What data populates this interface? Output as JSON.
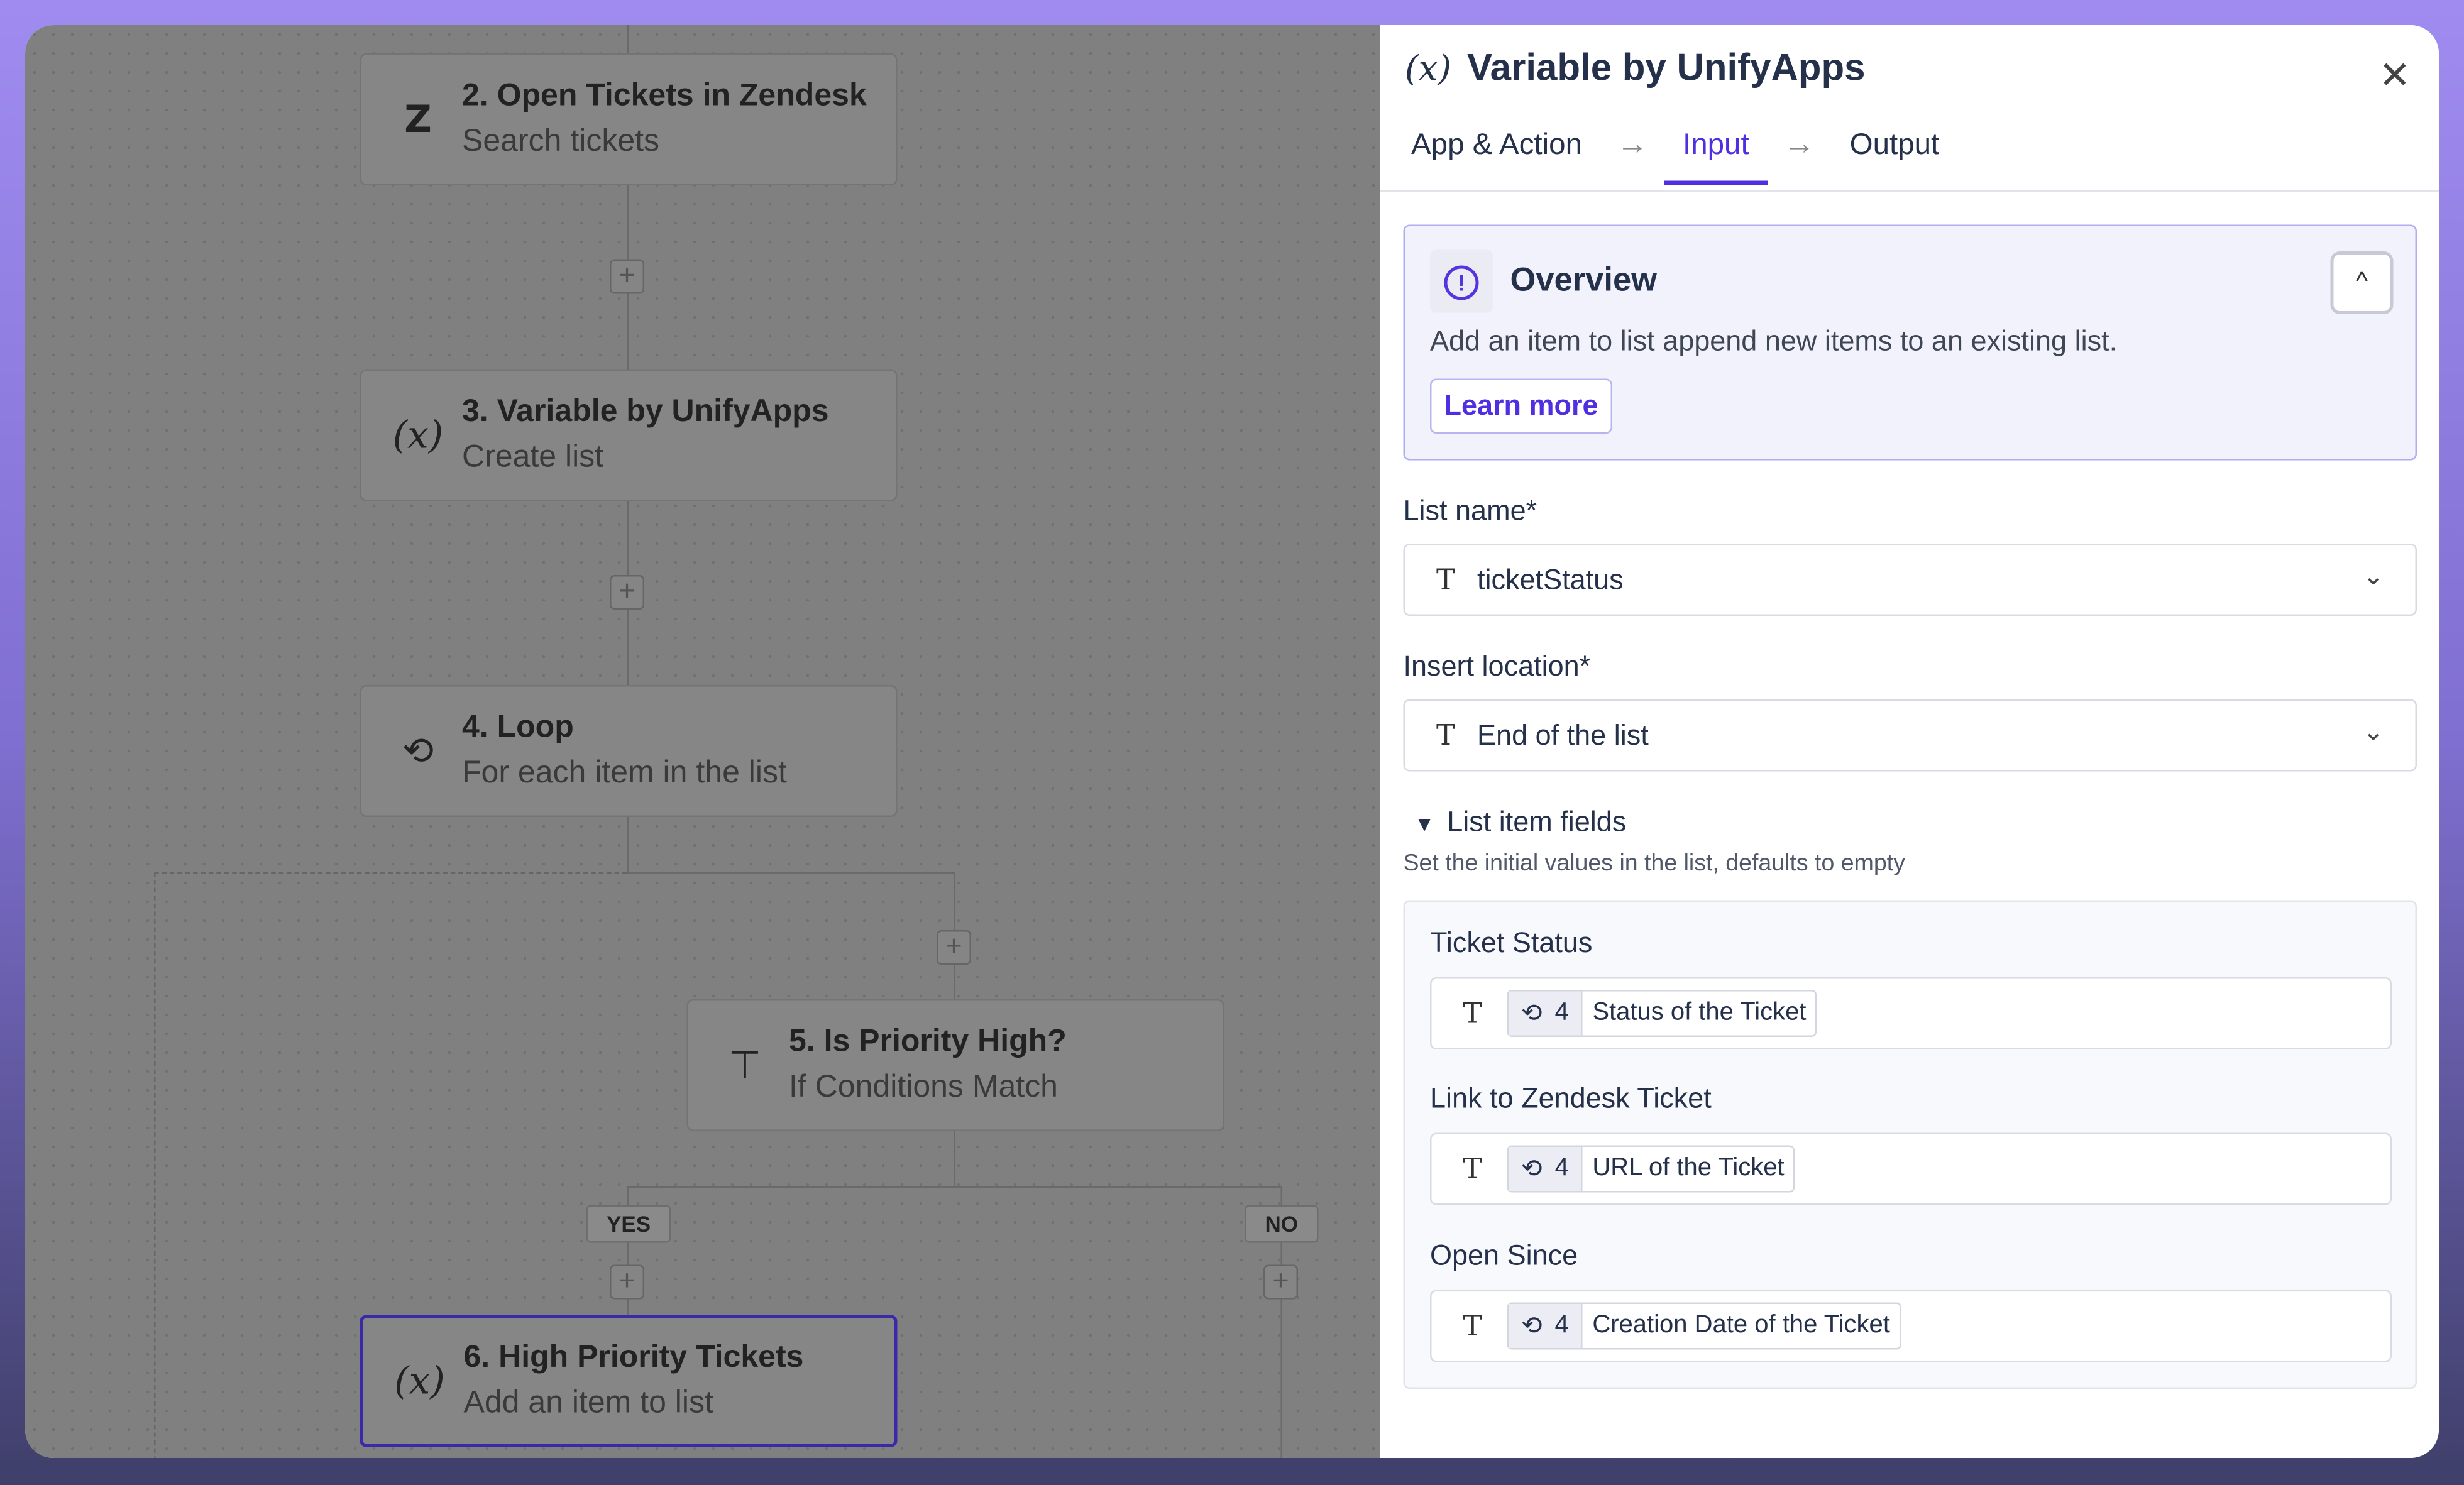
{
  "canvas": {
    "nodes": [
      {
        "step": "2. Open Tickets in Zendesk",
        "action": "Search tickets",
        "icon": "zendesk-icon"
      },
      {
        "step": "3. Variable by UnifyApps",
        "action": "Create list",
        "icon": "variable-icon"
      },
      {
        "step": "4. Loop",
        "action": "For each item in the list",
        "icon": "loop-icon"
      },
      {
        "step": "5. Is Priority High?",
        "action": "If Conditions Match",
        "icon": "condition-icon"
      },
      {
        "step": "6. High Priority Tickets",
        "action": "Add an item to list",
        "icon": "variable-icon",
        "selected": true
      }
    ],
    "branches": {
      "yes": "YES",
      "no": "NO"
    },
    "plus": "+"
  },
  "panel": {
    "icon_text": "(x)",
    "title": "Variable by UnifyApps",
    "close": "✕",
    "tabs": [
      {
        "label": "App & Action"
      },
      {
        "label": "Input",
        "active": true
      },
      {
        "label": "Output"
      }
    ],
    "arrow": "→",
    "overview": {
      "icon": "!",
      "title": "Overview",
      "collapse": "^",
      "description": "Add an item to list append new items to an existing list.",
      "learn_more": "Learn more"
    },
    "list_name": {
      "label": "List name*",
      "type_icon": "T",
      "value": "ticketStatus",
      "chevron": "⌄"
    },
    "insert_location": {
      "label": "Insert location*",
      "type_icon": "T",
      "value": "End of the list",
      "chevron": "⌄"
    },
    "list_item_fields": {
      "toggle": "▼",
      "title": "List item fields",
      "subtitle": "Set the initial values in the list, defaults to empty",
      "fields": [
        {
          "label": "Ticket Status",
          "type_icon": "T",
          "step": "4",
          "value": "Status of the Ticket"
        },
        {
          "label": "Link to Zendesk Ticket",
          "type_icon": "T",
          "step": "4",
          "value": "URL of the Ticket"
        },
        {
          "label": "Open Since",
          "type_icon": "T",
          "step": "4",
          "value": "Creation Date of the Ticket"
        }
      ]
    },
    "colors": {
      "accent": "#4f2fe0",
      "overview_bg": "#f2f2fd"
    }
  }
}
